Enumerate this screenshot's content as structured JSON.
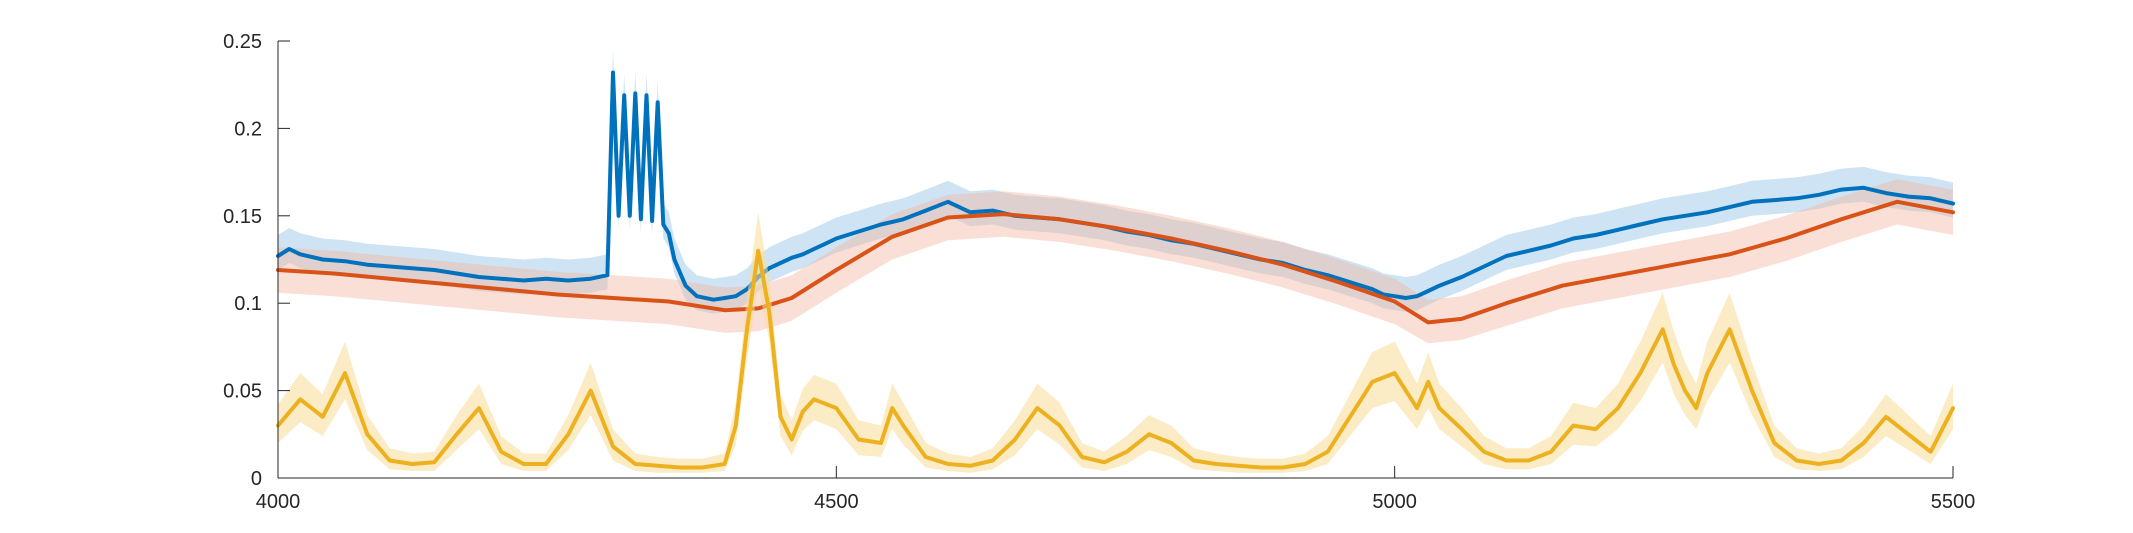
{
  "chart_data": {
    "type": "line",
    "title": "",
    "xlabel": "",
    "ylabel": "",
    "xlim": [
      4000,
      5500
    ],
    "ylim": [
      0,
      0.25
    ],
    "x_ticks": [
      4000,
      4500,
      5000,
      5500
    ],
    "x_tick_labels": [
      "4000",
      "4500",
      "5000",
      "5500"
    ],
    "y_ticks": [
      0,
      0.05,
      0.1,
      0.15,
      0.2,
      0.25
    ],
    "y_tick_labels": [
      "0",
      "0.05",
      "0.1",
      "0.15",
      "0.2",
      "0.25"
    ],
    "grid": false,
    "legend": "none",
    "series": [
      {
        "color": "#0072BD",
        "band_color": "#9ecae9",
        "band_opacity": 0.5,
        "x": [
          4000,
          4010,
          4020,
          4040,
          4060,
          4080,
          4100,
          4120,
          4140,
          4160,
          4180,
          4200,
          4220,
          4240,
          4260,
          4280,
          4295,
          4300,
          4305,
          4310,
          4315,
          4320,
          4325,
          4330,
          4335,
          4340,
          4345,
          4350,
          4355,
          4365,
          4375,
          4390,
          4400,
          4410,
          4420,
          4430,
          4440,
          4450,
          4460,
          4470,
          4480,
          4490,
          4500,
          4520,
          4540,
          4560,
          4580,
          4600,
          4620,
          4640,
          4660,
          4680,
          4700,
          4720,
          4740,
          4760,
          4780,
          4800,
          4820,
          4840,
          4860,
          4880,
          4900,
          4920,
          4940,
          4960,
          4980,
          4990,
          5000,
          5010,
          5020,
          5030,
          5040,
          5060,
          5080,
          5100,
          5120,
          5140,
          5160,
          5180,
          5200,
          5220,
          5240,
          5260,
          5280,
          5300,
          5320,
          5340,
          5360,
          5380,
          5400,
          5420,
          5440,
          5460,
          5480,
          5500
        ],
        "y": [
          0.127,
          0.131,
          0.128,
          0.125,
          0.124,
          0.122,
          0.121,
          0.12,
          0.119,
          0.117,
          0.115,
          0.114,
          0.113,
          0.114,
          0.113,
          0.114,
          0.116,
          0.232,
          0.15,
          0.219,
          0.15,
          0.22,
          0.148,
          0.219,
          0.147,
          0.215,
          0.145,
          0.14,
          0.125,
          0.11,
          0.104,
          0.102,
          0.103,
          0.104,
          0.108,
          0.115,
          0.12,
          0.123,
          0.126,
          0.128,
          0.131,
          0.134,
          0.137,
          0.141,
          0.145,
          0.148,
          0.153,
          0.158,
          0.152,
          0.153,
          0.15,
          0.149,
          0.148,
          0.146,
          0.144,
          0.141,
          0.139,
          0.136,
          0.134,
          0.131,
          0.128,
          0.125,
          0.123,
          0.119,
          0.116,
          0.112,
          0.108,
          0.105,
          0.104,
          0.103,
          0.104,
          0.107,
          0.11,
          0.115,
          0.121,
          0.127,
          0.13,
          0.133,
          0.137,
          0.139,
          0.142,
          0.145,
          0.148,
          0.15,
          0.152,
          0.155,
          0.158,
          0.159,
          0.16,
          0.162,
          0.165,
          0.166,
          0.163,
          0.161,
          0.16,
          0.157
        ],
        "y_lower": [
          0.119,
          0.123,
          0.12,
          0.117,
          0.116,
          0.114,
          0.113,
          0.112,
          0.111,
          0.109,
          0.107,
          0.106,
          0.105,
          0.106,
          0.105,
          0.106,
          0.108,
          0.224,
          0.142,
          0.211,
          0.142,
          0.212,
          0.14,
          0.211,
          0.139,
          0.207,
          0.137,
          0.132,
          0.117,
          0.102,
          0.096,
          0.094,
          0.095,
          0.096,
          0.1,
          0.107,
          0.112,
          0.115,
          0.118,
          0.12,
          0.123,
          0.126,
          0.129,
          0.133,
          0.137,
          0.14,
          0.145,
          0.15,
          0.144,
          0.145,
          0.142,
          0.141,
          0.14,
          0.138,
          0.136,
          0.133,
          0.131,
          0.128,
          0.126,
          0.123,
          0.12,
          0.117,
          0.115,
          0.111,
          0.108,
          0.104,
          0.1,
          0.097,
          0.096,
          0.095,
          0.096,
          0.099,
          0.102,
          0.107,
          0.113,
          0.119,
          0.122,
          0.125,
          0.129,
          0.131,
          0.134,
          0.137,
          0.14,
          0.142,
          0.144,
          0.147,
          0.15,
          0.151,
          0.152,
          0.154,
          0.157,
          0.158,
          0.155,
          0.153,
          0.152,
          0.149
        ],
        "y_upper": [
          0.139,
          0.143,
          0.14,
          0.137,
          0.136,
          0.134,
          0.133,
          0.132,
          0.131,
          0.129,
          0.127,
          0.126,
          0.125,
          0.126,
          0.125,
          0.126,
          0.128,
          0.245,
          0.162,
          0.231,
          0.162,
          0.232,
          0.16,
          0.231,
          0.159,
          0.227,
          0.157,
          0.152,
          0.137,
          0.122,
          0.116,
          0.114,
          0.115,
          0.116,
          0.12,
          0.127,
          0.132,
          0.135,
          0.138,
          0.14,
          0.143,
          0.146,
          0.149,
          0.153,
          0.157,
          0.16,
          0.165,
          0.17,
          0.164,
          0.165,
          0.162,
          0.161,
          0.16,
          0.158,
          0.156,
          0.153,
          0.151,
          0.148,
          0.146,
          0.143,
          0.14,
          0.137,
          0.135,
          0.131,
          0.128,
          0.124,
          0.12,
          0.117,
          0.116,
          0.115,
          0.116,
          0.119,
          0.122,
          0.127,
          0.133,
          0.139,
          0.142,
          0.145,
          0.149,
          0.151,
          0.154,
          0.157,
          0.16,
          0.162,
          0.164,
          0.167,
          0.17,
          0.171,
          0.172,
          0.174,
          0.177,
          0.178,
          0.175,
          0.173,
          0.172,
          0.169
        ]
      },
      {
        "color": "#D95319",
        "band_color": "#f3b9a4",
        "band_opacity": 0.45,
        "x": [
          4000,
          4050,
          4100,
          4150,
          4200,
          4250,
          4300,
          4350,
          4400,
          4430,
          4460,
          4500,
          4550,
          4600,
          4650,
          4700,
          4750,
          4800,
          4850,
          4900,
          4950,
          5000,
          5030,
          5060,
          5100,
          5150,
          5200,
          5250,
          5300,
          5350,
          5400,
          5450,
          5500
        ],
        "y": [
          0.119,
          0.117,
          0.114,
          0.111,
          0.108,
          0.105,
          0.103,
          0.101,
          0.096,
          0.097,
          0.103,
          0.119,
          0.138,
          0.149,
          0.151,
          0.148,
          0.143,
          0.137,
          0.13,
          0.122,
          0.112,
          0.101,
          0.089,
          0.091,
          0.1,
          0.11,
          0.116,
          0.122,
          0.128,
          0.137,
          0.148,
          0.158,
          0.152
        ],
        "y_lower": [
          0.106,
          0.104,
          0.101,
          0.098,
          0.095,
          0.092,
          0.09,
          0.088,
          0.083,
          0.084,
          0.09,
          0.106,
          0.125,
          0.136,
          0.138,
          0.135,
          0.13,
          0.124,
          0.117,
          0.109,
          0.099,
          0.088,
          0.077,
          0.079,
          0.087,
          0.097,
          0.103,
          0.109,
          0.115,
          0.124,
          0.135,
          0.145,
          0.139
        ],
        "y_upper": [
          0.132,
          0.13,
          0.127,
          0.124,
          0.121,
          0.118,
          0.116,
          0.114,
          0.109,
          0.11,
          0.116,
          0.132,
          0.151,
          0.162,
          0.164,
          0.161,
          0.156,
          0.15,
          0.143,
          0.135,
          0.125,
          0.114,
          0.102,
          0.104,
          0.113,
          0.123,
          0.129,
          0.135,
          0.141,
          0.15,
          0.161,
          0.171,
          0.165
        ]
      },
      {
        "color": "#EDB120",
        "band_color": "#f7dd98",
        "band_opacity": 0.55,
        "x": [
          4000,
          4020,
          4040,
          4060,
          4080,
          4100,
          4120,
          4140,
          4160,
          4180,
          4200,
          4220,
          4240,
          4260,
          4280,
          4300,
          4320,
          4340,
          4360,
          4380,
          4400,
          4410,
          4420,
          4430,
          4440,
          4450,
          4460,
          4470,
          4480,
          4500,
          4520,
          4540,
          4550,
          4560,
          4580,
          4600,
          4620,
          4640,
          4660,
          4680,
          4700,
          4720,
          4740,
          4760,
          4780,
          4800,
          4820,
          4840,
          4860,
          4880,
          4900,
          4920,
          4940,
          4960,
          4980,
          5000,
          5010,
          5020,
          5030,
          5040,
          5060,
          5080,
          5100,
          5120,
          5140,
          5160,
          5180,
          5200,
          5220,
          5240,
          5250,
          5260,
          5270,
          5280,
          5300,
          5320,
          5340,
          5360,
          5380,
          5400,
          5420,
          5440,
          5460,
          5480,
          5500
        ],
        "y": [
          0.03,
          0.045,
          0.035,
          0.06,
          0.025,
          0.01,
          0.008,
          0.009,
          0.025,
          0.04,
          0.015,
          0.008,
          0.008,
          0.025,
          0.05,
          0.018,
          0.008,
          0.007,
          0.006,
          0.006,
          0.008,
          0.03,
          0.085,
          0.13,
          0.095,
          0.035,
          0.022,
          0.038,
          0.045,
          0.04,
          0.022,
          0.02,
          0.04,
          0.03,
          0.012,
          0.008,
          0.007,
          0.01,
          0.022,
          0.04,
          0.03,
          0.012,
          0.009,
          0.015,
          0.025,
          0.02,
          0.01,
          0.008,
          0.007,
          0.006,
          0.006,
          0.008,
          0.015,
          0.035,
          0.055,
          0.06,
          0.05,
          0.04,
          0.055,
          0.04,
          0.028,
          0.015,
          0.01,
          0.01,
          0.015,
          0.03,
          0.028,
          0.04,
          0.06,
          0.085,
          0.065,
          0.05,
          0.04,
          0.06,
          0.085,
          0.05,
          0.02,
          0.01,
          0.008,
          0.01,
          0.02,
          0.035,
          0.025,
          0.015,
          0.04
        ],
        "y_lower": [
          0.02,
          0.032,
          0.024,
          0.045,
          0.016,
          0.005,
          0.004,
          0.004,
          0.016,
          0.028,
          0.008,
          0.004,
          0.004,
          0.016,
          0.036,
          0.01,
          0.004,
          0.003,
          0.003,
          0.003,
          0.004,
          0.019,
          0.068,
          0.11,
          0.078,
          0.024,
          0.013,
          0.027,
          0.033,
          0.028,
          0.013,
          0.012,
          0.028,
          0.019,
          0.006,
          0.004,
          0.003,
          0.005,
          0.013,
          0.028,
          0.019,
          0.006,
          0.004,
          0.008,
          0.016,
          0.012,
          0.005,
          0.004,
          0.003,
          0.003,
          0.003,
          0.004,
          0.008,
          0.024,
          0.04,
          0.044,
          0.036,
          0.028,
          0.04,
          0.028,
          0.018,
          0.008,
          0.005,
          0.005,
          0.008,
          0.019,
          0.018,
          0.028,
          0.044,
          0.066,
          0.048,
          0.036,
          0.028,
          0.044,
          0.066,
          0.036,
          0.012,
          0.005,
          0.004,
          0.005,
          0.012,
          0.024,
          0.016,
          0.008,
          0.028
        ],
        "y_upper": [
          0.042,
          0.06,
          0.048,
          0.078,
          0.036,
          0.017,
          0.014,
          0.015,
          0.036,
          0.054,
          0.024,
          0.014,
          0.014,
          0.036,
          0.066,
          0.028,
          0.014,
          0.012,
          0.011,
          0.011,
          0.014,
          0.043,
          0.104,
          0.152,
          0.114,
          0.048,
          0.033,
          0.051,
          0.059,
          0.054,
          0.033,
          0.03,
          0.054,
          0.043,
          0.02,
          0.014,
          0.012,
          0.017,
          0.033,
          0.054,
          0.043,
          0.02,
          0.015,
          0.024,
          0.036,
          0.03,
          0.017,
          0.014,
          0.012,
          0.011,
          0.011,
          0.014,
          0.024,
          0.048,
          0.072,
          0.078,
          0.066,
          0.054,
          0.072,
          0.054,
          0.04,
          0.024,
          0.017,
          0.017,
          0.024,
          0.043,
          0.04,
          0.054,
          0.078,
          0.106,
          0.084,
          0.066,
          0.054,
          0.078,
          0.106,
          0.066,
          0.03,
          0.017,
          0.014,
          0.017,
          0.03,
          0.048,
          0.036,
          0.024,
          0.054
        ]
      }
    ]
  }
}
